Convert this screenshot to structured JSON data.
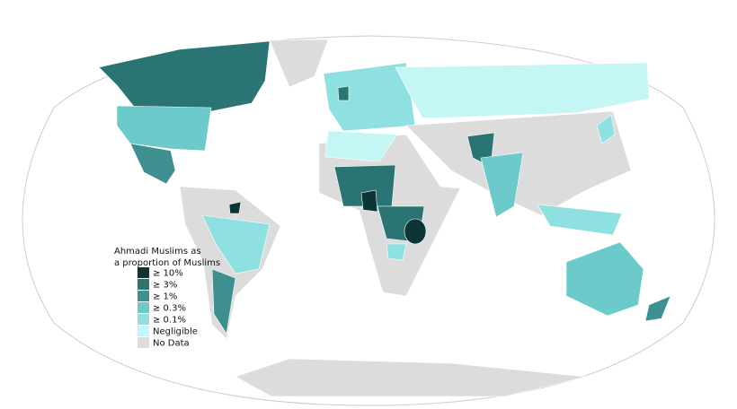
{
  "legend": {
    "title": [
      "Ahmadi Muslims as",
      "a proportion of Muslims"
    ],
    "items": [
      {
        "label": "≥ 10%",
        "color": "#0c3636"
      },
      {
        "label": "≥ 3%",
        "color": "#2b7474"
      },
      {
        "label": "≥ 1%",
        "color": "#3e8f8f"
      },
      {
        "label": "≥ 0.3%",
        "color": "#6ccaca"
      },
      {
        "label": "≥ 0.1%",
        "color": "#8fe1e1"
      },
      {
        "label": "Negligible",
        "color": "#c4f6f6"
      },
      {
        "label": "No Data",
        "color": "#dcdcdc"
      }
    ]
  }
}
